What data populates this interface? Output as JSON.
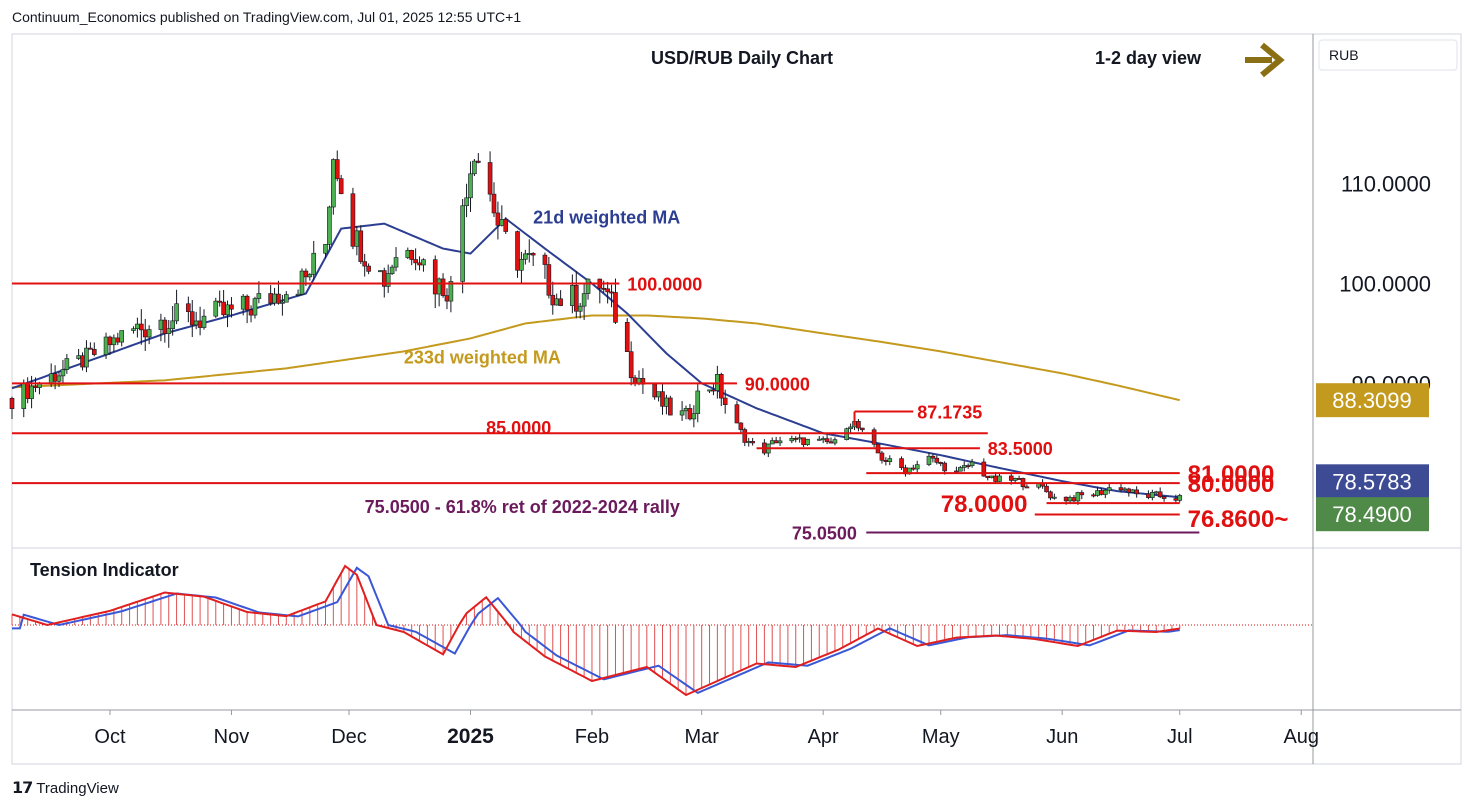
{
  "header": {
    "published": "Continuum_Economics published on TradingView.com, Jul 01, 2025 12:55 UTC+1"
  },
  "footer": {
    "brand": "TradingView",
    "logo_icon": "tradingview-logo-icon"
  },
  "colors": {
    "red": "#e01010",
    "navy": "#2c3e91",
    "gold": "#c49a1e",
    "purple": "#6b1a5c",
    "arrow": "#8b6f14",
    "blue_badge": "#3d4a94",
    "green_badge": "#4f8a49"
  },
  "chart_data": {
    "type": "candlestick",
    "title": "USD/RUB Daily Chart",
    "view_label": "1-2 day view",
    "view_icon": "right-arrow-icon",
    "currency": "RUB",
    "ylim": [
      73.5,
      125
    ],
    "y_ticks": [
      "110.0000",
      "100.0000",
      "90.0000"
    ],
    "x_labels": [
      "Oct",
      "Nov",
      "Dec",
      "2025",
      "Feb",
      "Mar",
      "Apr",
      "May",
      "Jun",
      "Jul",
      "Aug"
    ],
    "price_anchors": [
      [
        "2024-09-06",
        88.5
      ],
      [
        "2024-09-15",
        90.5
      ],
      [
        "2024-09-25",
        92.5
      ],
      [
        "2024-10-05",
        95.0
      ],
      [
        "2024-10-15",
        96.5
      ],
      [
        "2024-10-25",
        96.5
      ],
      [
        "2024-11-05",
        97.5
      ],
      [
        "2024-11-15",
        99.5
      ],
      [
        "2024-11-20",
        100.5
      ],
      [
        "2024-11-25",
        104.0
      ],
      [
        "2024-11-27",
        113.0
      ],
      [
        "2024-11-29",
        110.0
      ],
      [
        "2024-12-02",
        105.0
      ],
      [
        "2024-12-05",
        103.0
      ],
      [
        "2024-12-10",
        100.5
      ],
      [
        "2024-12-13",
        103.0
      ],
      [
        "2024-12-18",
        103.5
      ],
      [
        "2024-12-23",
        100.0
      ],
      [
        "2024-12-27",
        99.5
      ],
      [
        "2024-12-30",
        108.0
      ],
      [
        "2025-01-02",
        113.5
      ],
      [
        "2025-01-05",
        110.5
      ],
      [
        "2025-01-08",
        106.0
      ],
      [
        "2025-01-12",
        102.5
      ],
      [
        "2025-01-18",
        102.0
      ],
      [
        "2025-01-23",
        98.5
      ],
      [
        "2025-01-28",
        98.5
      ],
      [
        "2025-02-03",
        100.0
      ],
      [
        "2025-02-07",
        97.0
      ],
      [
        "2025-02-11",
        91.5
      ],
      [
        "2025-02-15",
        89.5
      ],
      [
        "2025-02-20",
        87.5
      ],
      [
        "2025-02-25",
        86.5
      ],
      [
        "2025-03-01",
        89.5
      ],
      [
        "2025-03-05",
        90.0
      ],
      [
        "2025-03-08",
        87.0
      ],
      [
        "2025-03-12",
        84.5
      ],
      [
        "2025-03-16",
        83.0
      ],
      [
        "2025-03-20",
        84.3
      ],
      [
        "2025-03-28",
        84.2
      ],
      [
        "2025-04-04",
        84.0
      ],
      [
        "2025-04-08",
        86.5
      ],
      [
        "2025-04-12",
        84.5
      ],
      [
        "2025-04-16",
        82.5
      ],
      [
        "2025-04-22",
        81.3
      ],
      [
        "2025-04-28",
        82.5
      ],
      [
        "2025-05-05",
        81.0
      ],
      [
        "2025-05-09",
        82.0
      ],
      [
        "2025-05-14",
        80.3
      ],
      [
        "2025-05-20",
        80.3
      ],
      [
        "2025-05-27",
        79.5
      ],
      [
        "2025-05-30",
        78.5
      ],
      [
        "2025-06-03",
        78.5
      ],
      [
        "2025-06-10",
        79.0
      ],
      [
        "2025-06-15",
        79.8
      ],
      [
        "2025-06-20",
        78.8
      ],
      [
        "2025-06-26",
        78.7
      ],
      [
        "2025-07-01",
        78.49
      ]
    ],
    "ma21_anchors": [
      [
        "2024-09-06",
        89.5
      ],
      [
        "2024-10-01",
        93.0
      ],
      [
        "2024-10-15",
        95.0
      ],
      [
        "2024-11-01",
        96.8
      ],
      [
        "2024-11-20",
        99.0
      ],
      [
        "2024-11-29",
        105.5
      ],
      [
        "2024-12-10",
        106.0
      ],
      [
        "2024-12-25",
        103.5
      ],
      [
        "2025-01-01",
        103.0
      ],
      [
        "2025-01-10",
        106.5
      ],
      [
        "2025-01-20",
        103.5
      ],
      [
        "2025-02-01",
        100.0
      ],
      [
        "2025-02-10",
        97.0
      ],
      [
        "2025-02-20",
        93.0
      ],
      [
        "2025-03-01",
        90.0
      ],
      [
        "2025-03-15",
        87.5
      ],
      [
        "2025-04-01",
        85.0
      ],
      [
        "2025-04-15",
        84.0
      ],
      [
        "2025-05-01",
        82.8
      ],
      [
        "2025-05-15",
        81.6
      ],
      [
        "2025-06-01",
        80.2
      ],
      [
        "2025-06-15",
        79.2
      ],
      [
        "2025-07-01",
        78.5783
      ]
    ],
    "ma233_anchors": [
      [
        "2024-09-06",
        89.6
      ],
      [
        "2024-10-15",
        90.3
      ],
      [
        "2024-11-15",
        91.5
      ],
      [
        "2024-12-15",
        93.2
      ],
      [
        "2025-01-01",
        94.5
      ],
      [
        "2025-01-15",
        96.0
      ],
      [
        "2025-02-01",
        96.8
      ],
      [
        "2025-02-15",
        96.8
      ],
      [
        "2025-03-01",
        96.5
      ],
      [
        "2025-03-15",
        96.0
      ],
      [
        "2025-04-01",
        95.0
      ],
      [
        "2025-04-15",
        94.2
      ],
      [
        "2025-05-01",
        93.2
      ],
      [
        "2025-05-15",
        92.2
      ],
      [
        "2025-06-01",
        91.0
      ],
      [
        "2025-06-15",
        89.8
      ],
      [
        "2025-07-01",
        88.3099
      ]
    ],
    "levels": [
      {
        "label": "100.0000",
        "value": 100.0,
        "from": "2024-09-06",
        "to": "2025-02-08",
        "label_at": "2025-02-10",
        "style": "red"
      },
      {
        "label": "90.0000",
        "value": 90.0,
        "from": "2024-09-06",
        "to": "2025-03-10",
        "label_at": "2025-03-12",
        "style": "red"
      },
      {
        "label": "85.0000",
        "value": 85.0,
        "from": "2024-09-06",
        "to": "2025-05-13",
        "label_at": "2025-01-05",
        "label_value": 85.6,
        "style": "red"
      },
      {
        "label": "87.1735",
        "value": 87.1735,
        "from": "2025-04-09",
        "to": "2025-04-24",
        "label_at": "2025-04-25",
        "style": "red-bracket"
      },
      {
        "label": "83.5000",
        "value": 83.5,
        "from": "2025-03-15",
        "to": "2025-05-11",
        "label_at": "2025-05-13",
        "style": "red"
      },
      {
        "label": "81.0000",
        "value": 81.0,
        "from": "2025-04-12",
        "to": "2025-07-01",
        "label_at": "2025-07-03",
        "style": "red-large"
      },
      {
        "label": "80.0000",
        "value": 80.0,
        "from": "2024-09-06",
        "to": "2025-07-01",
        "label_at": "2025-07-03",
        "style": "red-large"
      },
      {
        "label": "78.0000",
        "value": 78.0,
        "from": "2025-05-28",
        "to": "2025-07-01",
        "label_at": "2025-05-01",
        "style": "red-large"
      },
      {
        "label": "76.8600~",
        "value": 76.86,
        "from": "2025-05-25",
        "to": "2025-07-01",
        "label_at": "2025-07-03",
        "label_value": 76.5,
        "style": "red-large"
      },
      {
        "label": "75.0500",
        "value": 75.05,
        "from": "2025-04-12",
        "to": "2025-07-06",
        "label_at": "2025-03-24",
        "style": "purple"
      }
    ],
    "annotations": [
      {
        "text": "21d weighted MA",
        "x": "2025-01-17",
        "y": 106.0,
        "style": "navy"
      },
      {
        "text": "233d weighted MA",
        "x": "2024-12-15",
        "y": 92.0,
        "style": "gold"
      },
      {
        "text": "75.0500 - 61.8% ret of 2022-2024 rally",
        "x": "2024-12-05",
        "y": 77.0,
        "style": "purple"
      }
    ],
    "badges": [
      {
        "label": "88.3099",
        "value": 88.3099,
        "style": "gold"
      },
      {
        "label": "78.5783",
        "value": 78.5783,
        "style": "blue"
      },
      {
        "label": "78.4900",
        "value": 78.49,
        "style": "green"
      }
    ],
    "indicator": {
      "title": "Tension Indicator",
      "anchors": [
        [
          "2024-09-06",
          0.18
        ],
        [
          "2024-09-15",
          0.0
        ],
        [
          "2024-10-01",
          0.24
        ],
        [
          "2024-10-15",
          0.55
        ],
        [
          "2024-10-25",
          0.48
        ],
        [
          "2024-11-05",
          0.22
        ],
        [
          "2024-11-15",
          0.15
        ],
        [
          "2024-11-25",
          0.4
        ],
        [
          "2024-11-30",
          1.0
        ],
        [
          "2024-12-03",
          0.85
        ],
        [
          "2024-12-08",
          0.0
        ],
        [
          "2024-12-15",
          -0.1
        ],
        [
          "2024-12-25",
          -0.42
        ],
        [
          "2024-12-31",
          0.2
        ],
        [
          "2025-01-05",
          0.47
        ],
        [
          "2025-01-12",
          -0.1
        ],
        [
          "2025-01-20",
          -0.45
        ],
        [
          "2025-02-01",
          -0.8
        ],
        [
          "2025-02-15",
          -0.6
        ],
        [
          "2025-02-25",
          -1.0
        ],
        [
          "2025-03-05",
          -0.8
        ],
        [
          "2025-03-15",
          -0.55
        ],
        [
          "2025-03-25",
          -0.6
        ],
        [
          "2025-04-05",
          -0.35
        ],
        [
          "2025-04-15",
          -0.05
        ],
        [
          "2025-04-25",
          -0.3
        ],
        [
          "2025-05-05",
          -0.18
        ],
        [
          "2025-05-15",
          -0.15
        ],
        [
          "2025-05-25",
          -0.2
        ],
        [
          "2025-06-05",
          -0.3
        ],
        [
          "2025-06-15",
          -0.08
        ],
        [
          "2025-06-25",
          -0.1
        ],
        [
          "2025-07-01",
          -0.05
        ]
      ]
    }
  }
}
